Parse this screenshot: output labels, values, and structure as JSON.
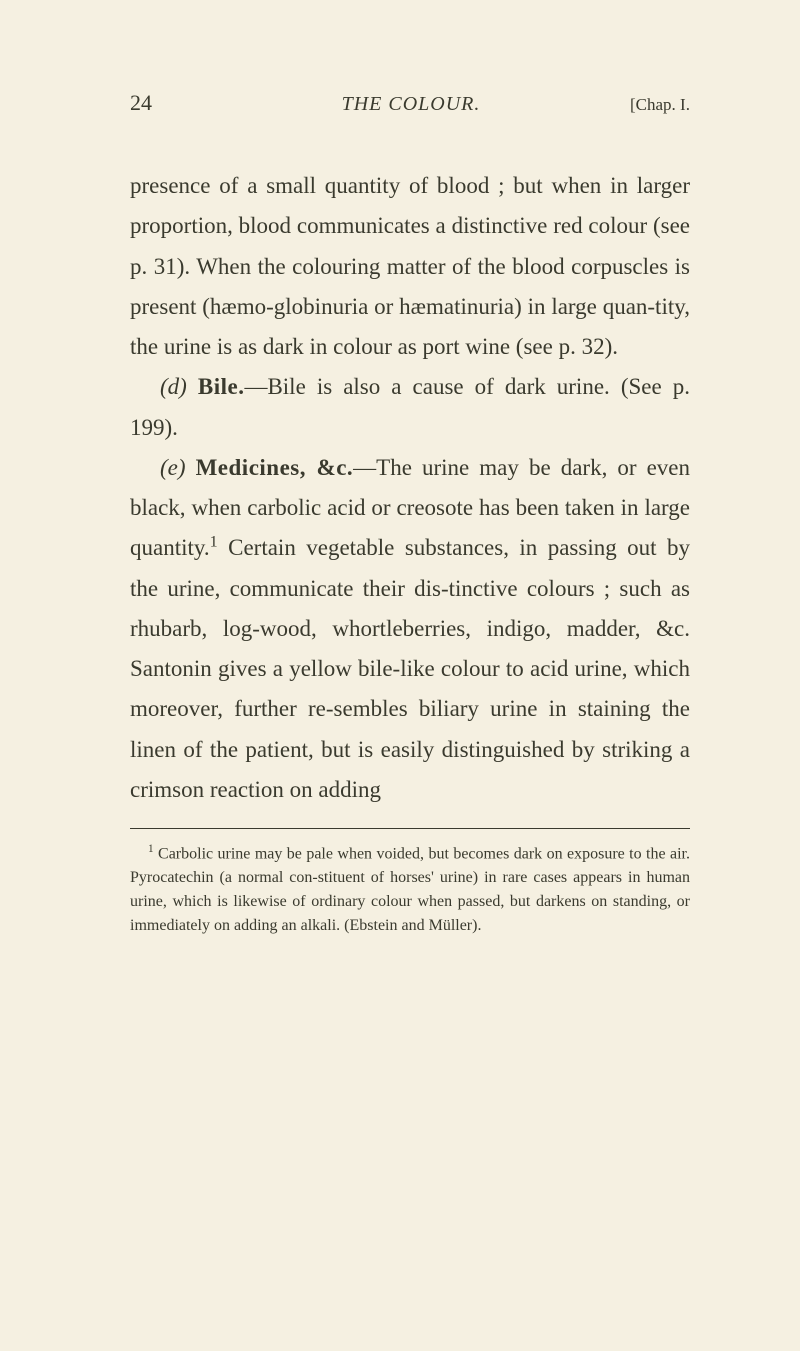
{
  "header": {
    "pageNumber": "24",
    "runningTitle": "THE COLOUR.",
    "chapterLabel": "[Chap. I."
  },
  "paragraphs": {
    "p1_part1": "presence of a small quantity of blood ; but when in larger proportion, blood communicates a distinctive red colour (see p. 31). When the colouring matter of the blood corpuscles is present (hæmo-globinuria or hæmatinuria) in large quan-tity, the urine is as dark in colour as port wine (see p. 32).",
    "p2_prefix": "(d) ",
    "p2_bold": "Bile.",
    "p2_rest": "—Bile is also a cause of dark urine. (See p. 199).",
    "p3_prefix": "(e) ",
    "p3_bold": "Medicines, &c.",
    "p3_rest1": "—The urine may be dark, or even black, when carbolic acid or creosote has been taken in large quantity.",
    "p3_sup": "1",
    "p3_rest2": " Certain vegetable substances, in passing out by the urine, communicate their dis-tinctive colours ; such as rhubarb, log-wood, whortleberries, indigo, madder, &c. Santonin gives a yellow bile-like colour to acid urine, which moreover, further re-sembles biliary urine in staining the linen of the patient, but is easily distinguished by striking a crimson reaction on adding"
  },
  "footnote": {
    "marker": "1",
    "text": " Carbolic urine may be pale when voided, but becomes dark on exposure to the air. Pyrocatechin (a normal con-stituent of horses' urine) in rare cases appears in human urine, which is likewise of ordinary colour when passed, but darkens on standing, or immediately on adding an alkali. (Ebstein and Müller)."
  },
  "colors": {
    "background": "#f5f0e1",
    "text": "#3a3a2e",
    "rule": "#3a3a2e"
  },
  "typography": {
    "bodyFontSize": 23,
    "bodyLineHeight": 1.75,
    "headerFontSize": 20,
    "footnoteFontSize": 16,
    "fontFamily": "Georgia, Times New Roman, serif"
  }
}
